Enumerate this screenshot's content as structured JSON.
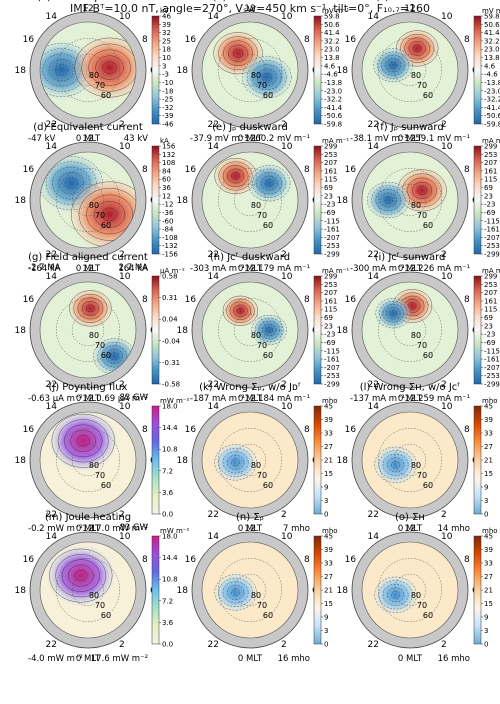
{
  "header": "IMF Bᵀ=10.0 nT, angle=270°, Vₛw=450 km s⁻¹, tilt=0°, F₁₀.₇=160",
  "chart_data": [
    {
      "type": "heatmap",
      "title": "(a) Electric potential",
      "unit": "kV",
      "cbar_ticks": [
        "46",
        "39",
        "32",
        "25",
        "18",
        "10",
        "3",
        "-3",
        "-10",
        "-18",
        "-25",
        "-32",
        "-39",
        "-46"
      ],
      "cmap": "rdbu",
      "min_label": "-47 kV",
      "max_label": "43 kV",
      "contour_labels": [
        "80",
        "70",
        "60"
      ],
      "features": [
        {
          "x": -0.55,
          "y": 0.0,
          "s": -1,
          "r": 0.45
        },
        {
          "x": 0.45,
          "y": -0.05,
          "s": 1,
          "r": 0.5
        }
      ]
    },
    {
      "type": "heatmap",
      "title": "(b) E duskward",
      "unit": "mV m⁻¹",
      "cbar_ticks": [
        "59.8",
        "50.6",
        "41.4",
        "32.2",
        "23.0",
        "13.8",
        "4.6",
        "-4.6",
        "-13.8",
        "-23.0",
        "-32.2",
        "-41.4",
        "-50.6",
        "-59.8"
      ],
      "cmap": "rdbu",
      "min_label": "-37.9 mV m⁻¹",
      "max_label": "60.2 mV m⁻¹",
      "contour_labels": [
        "80",
        "70",
        "60"
      ],
      "features": [
        {
          "x": -0.25,
          "y": -0.35,
          "s": 1,
          "r": 0.35
        },
        {
          "x": 0.35,
          "y": 0.15,
          "s": -1,
          "r": 0.35
        }
      ]
    },
    {
      "type": "heatmap",
      "title": "(c) E sunward",
      "unit": "mV m⁻¹",
      "cbar_ticks": [
        "59.8",
        "50.6",
        "41.4",
        "32.2",
        "23.0",
        "13.8",
        "4.6",
        "-4.6",
        "-13.8",
        "-23.0",
        "-32.2",
        "-41.4",
        "-50.6",
        "-59.8"
      ],
      "cmap": "rdbu",
      "min_label": "-38.1 mV m⁻¹",
      "max_label": "59.1 mV m⁻¹",
      "contour_labels": [
        "80",
        "70",
        "60"
      ],
      "features": [
        {
          "x": 0.15,
          "y": -0.45,
          "s": 1,
          "r": 0.3
        },
        {
          "x": -0.35,
          "y": -0.1,
          "s": -1,
          "r": 0.28
        }
      ]
    },
    {
      "type": "heatmap",
      "title": "(d) Equivalent current",
      "unit": "kA",
      "cbar_ticks": [
        "156",
        "132",
        "108",
        "84",
        "60",
        "36",
        "12",
        "-12",
        "-36",
        "-60",
        "-84",
        "-108",
        "-132",
        "-156"
      ],
      "cmap": "rdbu",
      "min_label": "-164 kA",
      "max_label": "164 kA",
      "contour_labels": [
        "80",
        "70",
        "60"
      ],
      "features": [
        {
          "x": -0.35,
          "y": -0.35,
          "s": -1,
          "r": 0.45
        },
        {
          "x": 0.45,
          "y": 0.3,
          "s": 1,
          "r": 0.55
        }
      ]
    },
    {
      "type": "heatmap",
      "title": "(e) Jₚ duskward",
      "unit": "mA m⁻¹",
      "cbar_ticks": [
        "299",
        "253",
        "207",
        "161",
        "115",
        "69",
        "23",
        "-23",
        "-69",
        "-115",
        "-161",
        "-207",
        "-253",
        "-299"
      ],
      "cmap": "rdbu",
      "min_label": "-303 mA m⁻¹",
      "max_label": "179 mA m⁻¹",
      "contour_labels": [
        "80",
        "70",
        "60"
      ],
      "features": [
        {
          "x": -0.3,
          "y": -0.5,
          "s": 1,
          "r": 0.3
        },
        {
          "x": 0.4,
          "y": -0.35,
          "s": -1,
          "r": 0.3
        }
      ]
    },
    {
      "type": "heatmap",
      "title": "(f) Jₚ sunward",
      "unit": "mA m⁻¹",
      "cbar_ticks": [
        "299",
        "253",
        "207",
        "161",
        "115",
        "69",
        "23",
        "-23",
        "-69",
        "-115",
        "-161",
        "-207",
        "-253",
        "-299"
      ],
      "cmap": "rdbu",
      "min_label": "-300 mA m⁻¹",
      "max_label": "226 mA m⁻¹",
      "contour_labels": [
        "80",
        "70",
        "60"
      ],
      "features": [
        {
          "x": 0.25,
          "y": -0.2,
          "s": 1,
          "r": 0.35
        },
        {
          "x": -0.45,
          "y": 0.0,
          "s": -1,
          "r": 0.3
        }
      ]
    },
    {
      "type": "heatmap",
      "title": "(g) Field aligned current",
      "unit": "μA m⁻²",
      "cbar_ticks": [
        "0.58",
        "0.31",
        "0.04",
        "-0.04",
        "-0.31",
        "-0.58"
      ],
      "cmap": "rdbu",
      "min_label": "-0.63 μA m⁻²",
      "max_label": "0.69 μA m⁻²",
      "extra_left": "-2.7 MA",
      "extra_right": "2.7 MA",
      "contour_labels": [
        "80",
        "70",
        "60"
      ],
      "features": [
        {
          "x": 0.05,
          "y": -0.45,
          "s": 1,
          "r": 0.3
        },
        {
          "x": 0.55,
          "y": 0.55,
          "s": -1,
          "r": 0.3
        }
      ]
    },
    {
      "type": "heatmap",
      "title": "(h) Jᴄᶠ duskward",
      "unit": "mA m⁻¹",
      "cbar_ticks": [
        "299",
        "253",
        "207",
        "161",
        "115",
        "69",
        "23",
        "-23",
        "-69",
        "-115",
        "-161",
        "-207",
        "-253",
        "-299"
      ],
      "cmap": "rdbu",
      "min_label": "-187 mA m⁻¹",
      "max_label": "184 mA m⁻¹",
      "contour_labels": [
        "80",
        "70",
        "60"
      ],
      "features": [
        {
          "x": -0.2,
          "y": -0.4,
          "s": 1,
          "r": 0.25
        },
        {
          "x": 0.4,
          "y": 0.0,
          "s": -1,
          "r": 0.25
        }
      ]
    },
    {
      "type": "heatmap",
      "title": "(i) Jᴄᶠ sunward",
      "unit": "mA m⁻¹",
      "cbar_ticks": [
        "299",
        "253",
        "207",
        "161",
        "115",
        "69",
        "23",
        "-23",
        "-69",
        "-115",
        "-161",
        "-207",
        "-253",
        "-299"
      ],
      "cmap": "rdbu",
      "min_label": "-137 mA m⁻¹",
      "max_label": "259 mA m⁻¹",
      "contour_labels": [
        "80",
        "70",
        "60"
      ],
      "features": [
        {
          "x": 0.05,
          "y": -0.5,
          "s": 1,
          "r": 0.28
        },
        {
          "x": -0.35,
          "y": -0.35,
          "s": -1,
          "r": 0.25
        }
      ]
    },
    {
      "type": "heatmap",
      "title": "(j) Poynting flux",
      "unit": "mW m⁻²",
      "cbar_ticks": [
        "18.0",
        "14.4",
        "10.8",
        "7.2",
        "3.6",
        "0.0"
      ],
      "cmap": "poynt",
      "min_label": "-0.2 mW m⁻²",
      "max_label": "17.0 mW m⁻²",
      "extra_right": "83 GW",
      "contour_labels": [
        "80",
        "70",
        "60"
      ],
      "features": [
        {
          "x": -0.1,
          "y": -0.4,
          "s": 1,
          "r": 0.45
        }
      ]
    },
    {
      "type": "heatmap",
      "title": "(k) Wrong Σₚ, w/o Jᴅᶠ",
      "unit": "mho",
      "cbar_ticks": [
        "45",
        "39",
        "33",
        "27",
        "21",
        "15",
        "9",
        "3",
        "0"
      ],
      "cmap": "mho",
      "min_label": "",
      "max_label": "7 mho",
      "contour_labels": [
        "80",
        "70",
        "60"
      ],
      "features": [
        {
          "x": -0.3,
          "y": 0.05,
          "s": -1,
          "r": 0.3
        }
      ]
    },
    {
      "type": "heatmap",
      "title": "(l) Wrong Σʜ, w/o Jᴄᶠ",
      "unit": "mho",
      "cbar_ticks": [
        "45",
        "39",
        "33",
        "27",
        "21",
        "15",
        "9",
        "3",
        "0"
      ],
      "cmap": "mho",
      "min_label": "",
      "max_label": "14 mho",
      "contour_labels": [
        "80",
        "70",
        "60"
      ],
      "features": [
        {
          "x": -0.3,
          "y": 0.1,
          "s": -1,
          "r": 0.3
        }
      ]
    },
    {
      "type": "heatmap",
      "title": "(m) Joule heating",
      "unit": "mW m⁻²",
      "cbar_ticks": [
        "18.0",
        "14.4",
        "10.8",
        "7.2",
        "3.6",
        "0.0"
      ],
      "cmap": "poynt",
      "min_label": "-4.0 mW m⁻²",
      "max_label": "17.6 mW m⁻²",
      "extra_right": "83 GW",
      "contour_labels": [
        "80",
        "70",
        "60"
      ],
      "features": [
        {
          "x": -0.15,
          "y": -0.3,
          "s": 1,
          "r": 0.45
        }
      ]
    },
    {
      "type": "heatmap",
      "title": "(n) Σₚ",
      "unit": "mho",
      "cbar_ticks": [
        "45",
        "39",
        "33",
        "27",
        "21",
        "15",
        "9",
        "3",
        "0"
      ],
      "cmap": "mho",
      "min_label": "",
      "max_label": "16 mho",
      "contour_labels": [
        "80",
        "70",
        "60"
      ],
      "features": [
        {
          "x": -0.3,
          "y": 0.05,
          "s": -1,
          "r": 0.3
        }
      ]
    },
    {
      "type": "heatmap",
      "title": "(o) Σʜ",
      "unit": "mho",
      "cbar_ticks": [
        "45",
        "39",
        "33",
        "27",
        "21",
        "15",
        "9",
        "3",
        "0"
      ],
      "cmap": "mho",
      "min_label": "",
      "max_label": "16 mho",
      "contour_labels": [
        "80",
        "70",
        "60"
      ],
      "features": [
        {
          "x": -0.3,
          "y": 0.1,
          "s": -1,
          "r": 0.3
        }
      ]
    }
  ],
  "mlt_labels": {
    "top": "12",
    "left": "18",
    "right": "6",
    "tl": "14",
    "tr": "10",
    "ll": "16",
    "lr": "8",
    "bl": "22",
    "br": "2",
    "bottom": "0 MLT"
  }
}
